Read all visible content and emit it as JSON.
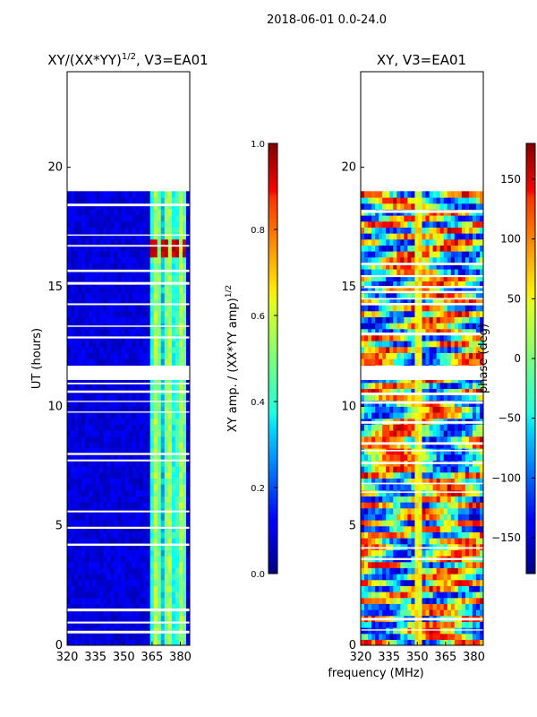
{
  "figure": {
    "suptitle": "2018-06-01 0.0-24.0",
    "shared_xlabel": "frequency (MHz)"
  },
  "chart_data": [
    {
      "type": "heatmap",
      "title": "XY/(XX*YY)^1/2, V3=EA01",
      "title_main": "XY/(XX*YY)",
      "title_exp": "1/2",
      "title_tail": ", V3=EA01",
      "ylabel": "UT (hours)",
      "xlim": [
        320,
        385
      ],
      "ylim": [
        0,
        24
      ],
      "xticks": [
        320,
        335,
        350,
        365,
        380
      ],
      "yticks": [
        0,
        5,
        10,
        15,
        20
      ],
      "data_time_range": [
        0,
        19
      ],
      "flagged_time_ranges": [
        [
          11.1,
          11.7
        ]
      ],
      "bright_channel_range_MHz": [
        363,
        382
      ],
      "colorbar": {
        "label": "XY amp. / (XX*YY amp)^1/2",
        "label_main": "XY amp. / (XX*YY amp)",
        "label_exp": "1/2",
        "range": [
          0.0,
          1.0
        ],
        "ticks": [
          "0.0",
          "0.2",
          "0.4",
          "0.6",
          "0.8",
          "1.0"
        ],
        "colormap": "jet"
      }
    },
    {
      "type": "heatmap",
      "title": "XY, V3=EA01",
      "ylabel": "",
      "xlim": [
        320,
        385
      ],
      "ylim": [
        0,
        24
      ],
      "xticks": [
        320,
        335,
        350,
        365,
        380
      ],
      "yticks": [
        0,
        5,
        10,
        15,
        20
      ],
      "data_time_range": [
        0,
        19
      ],
      "flagged_time_ranges": [
        [
          11.1,
          11.7
        ]
      ],
      "colorbar": {
        "label": "phase (deg)",
        "range": [
          -180,
          180
        ],
        "ticks": [
          "−150",
          "−100",
          "−50",
          "0",
          "50",
          "100",
          "150"
        ],
        "tick_values": [
          -150,
          -100,
          -50,
          0,
          50,
          100,
          150
        ],
        "colormap": "jet"
      }
    }
  ]
}
